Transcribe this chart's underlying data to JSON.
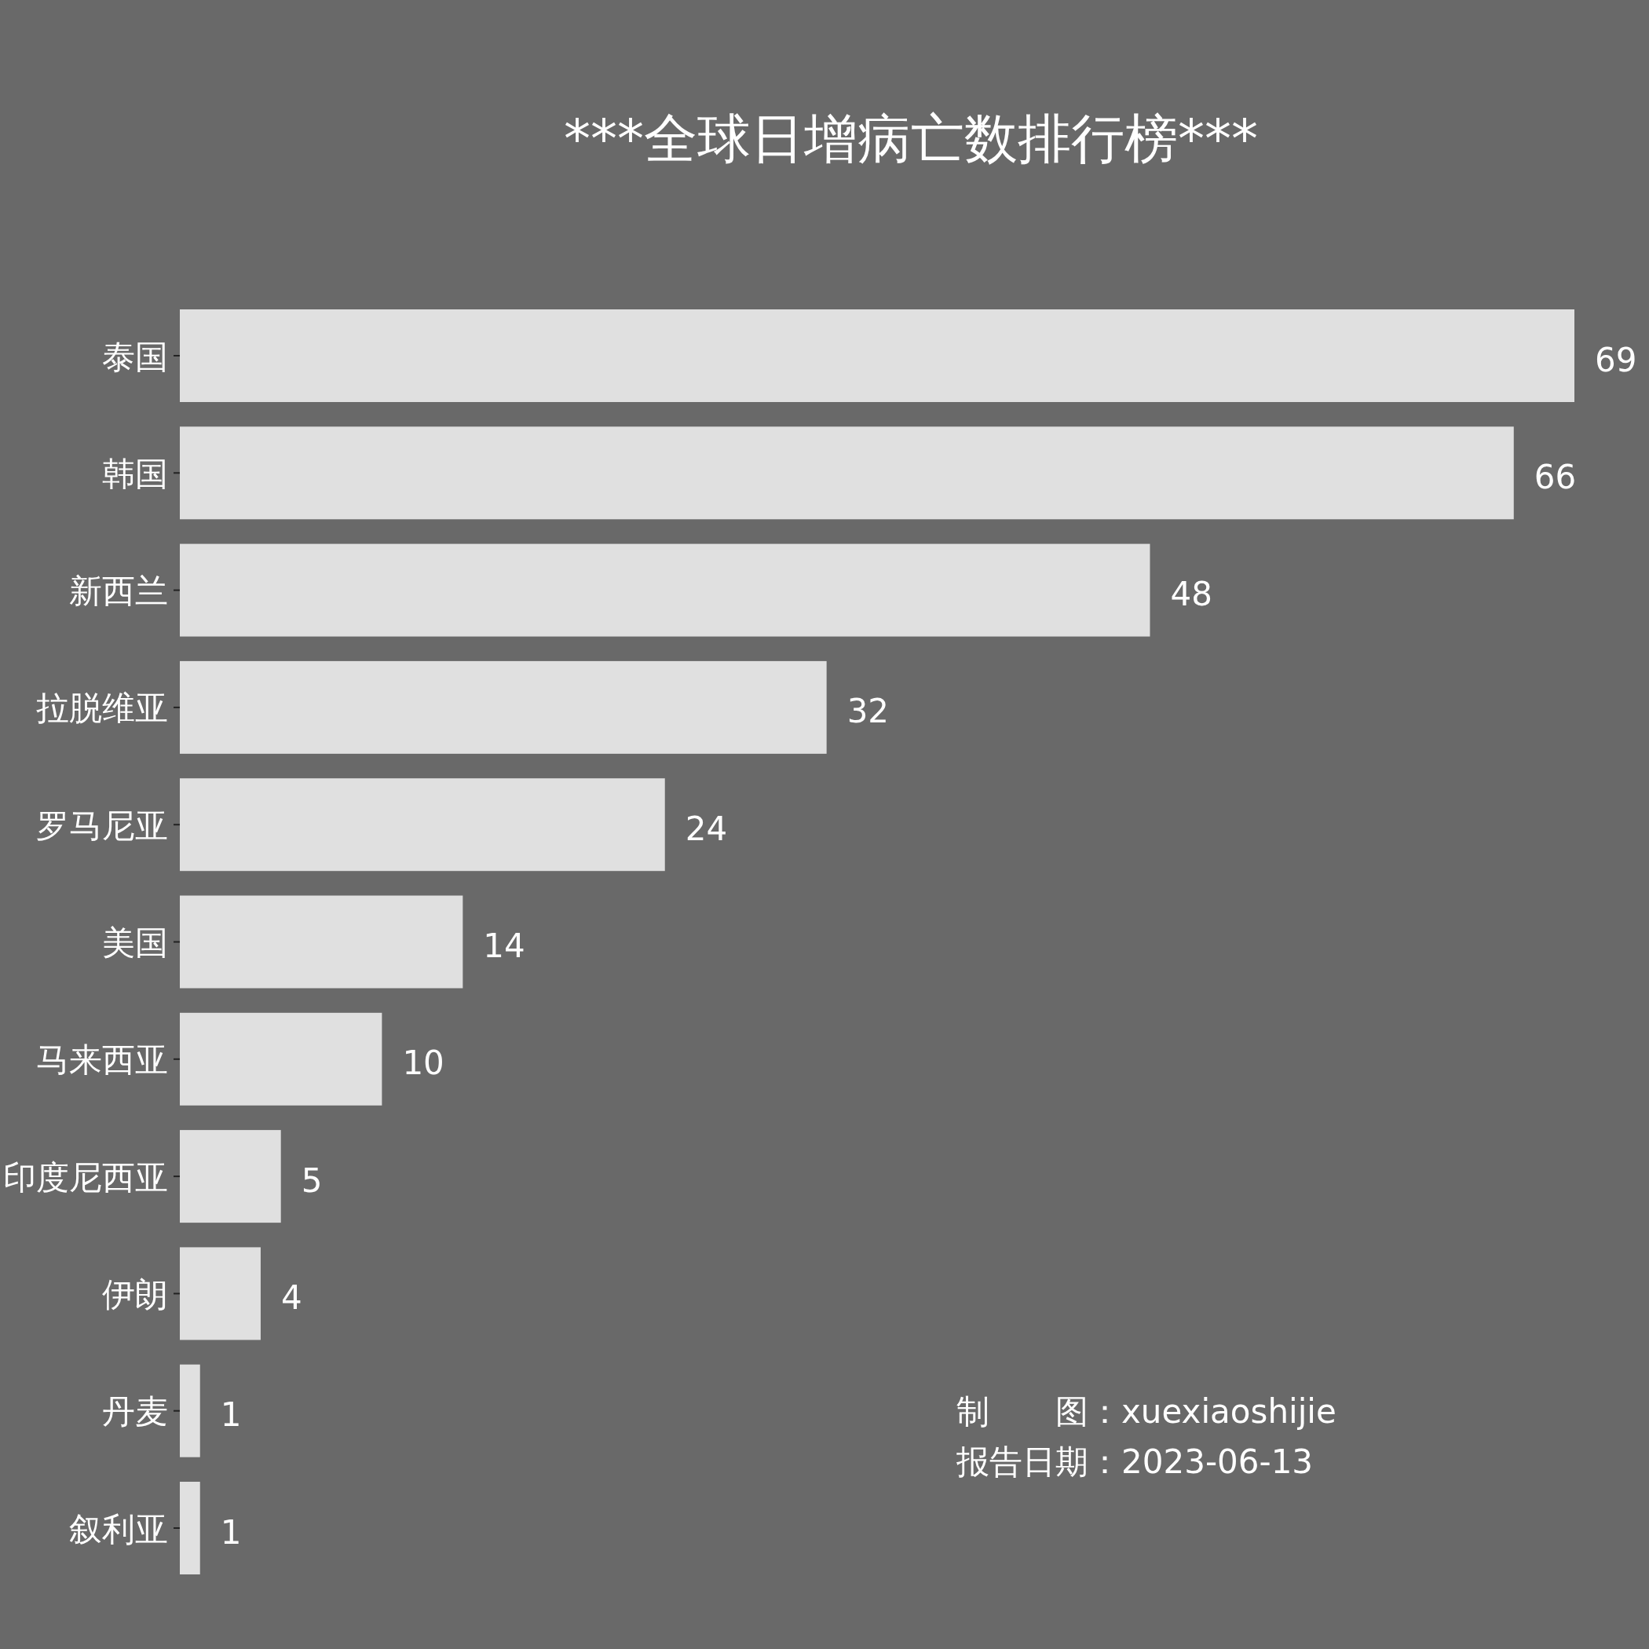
{
  "chart_data": {
    "type": "bar",
    "orientation": "horizontal",
    "title": "***全球日增病亡数排行榜***",
    "categories": [
      "泰国",
      "韩国",
      "新西兰",
      "拉脱维亚",
      "罗马尼亚",
      "美国",
      "马来西亚",
      "印度尼西亚",
      "伊朗",
      "丹麦",
      "叙利亚"
    ],
    "values": [
      69,
      66,
      48,
      32,
      24,
      14,
      10,
      5,
      4,
      1,
      1
    ],
    "color": "#e0e0e0",
    "data_labels": true,
    "annotations": [
      "制　　图：xuexiaoshijie",
      "报告日期：2023-06-13"
    ]
  }
}
